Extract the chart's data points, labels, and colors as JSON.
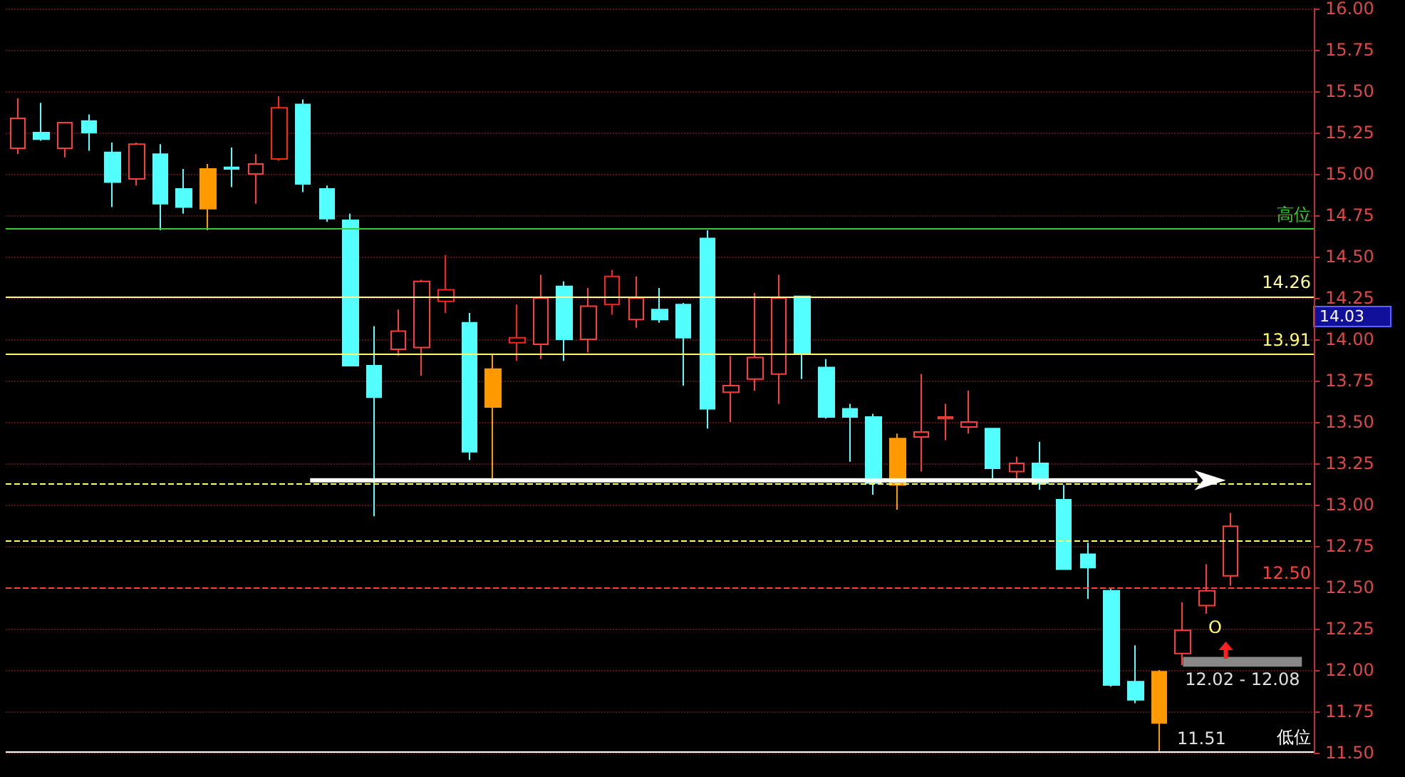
{
  "chart_data": {
    "type": "candlestick",
    "categories": [
      null,
      null,
      null,
      null,
      null,
      null,
      null,
      null,
      null,
      null,
      null,
      null,
      null,
      null,
      null,
      null,
      null,
      null,
      null,
      null,
      null,
      null,
      null,
      null,
      null,
      null,
      null,
      null,
      null,
      null,
      null,
      null,
      null,
      null,
      null,
      null,
      null,
      null,
      null,
      null,
      null,
      null,
      null,
      null,
      null,
      null,
      null,
      null,
      null,
      null,
      null,
      null,
      null,
      null,
      null
    ],
    "ohlc": [
      [
        15.155,
        15.457,
        15.12,
        15.336
      ],
      [
        15.25,
        15.43,
        15.2,
        15.21
      ],
      [
        15.155,
        15.31,
        15.1,
        15.31
      ],
      [
        15.32,
        15.36,
        15.14,
        15.25
      ],
      [
        15.13,
        15.19,
        14.8,
        14.95
      ],
      [
        14.97,
        15.19,
        14.93,
        15.18
      ],
      [
        15.12,
        15.18,
        14.66,
        14.82
      ],
      [
        14.91,
        15.03,
        14.76,
        14.8
      ],
      [
        15.03,
        15.06,
        14.66,
        14.79
      ],
      [
        15.04,
        15.16,
        14.92,
        15.03
      ],
      [
        15.0,
        15.12,
        14.82,
        15.06
      ],
      [
        15.09,
        15.47,
        15.08,
        15.4
      ],
      [
        15.42,
        15.45,
        14.89,
        14.94
      ],
      [
        14.91,
        14.93,
        14.71,
        14.73
      ],
      [
        14.72,
        14.76,
        13.84,
        13.84
      ],
      [
        13.84,
        14.08,
        12.93,
        13.65
      ],
      [
        13.94,
        14.18,
        13.9,
        14.05
      ],
      [
        13.95,
        14.36,
        13.78,
        14.35
      ],
      [
        14.23,
        14.51,
        14.16,
        14.3
      ],
      [
        14.1,
        14.16,
        13.27,
        13.32
      ],
      [
        13.82,
        13.91,
        13.14,
        13.59
      ],
      [
        13.98,
        14.21,
        13.87,
        14.01
      ],
      [
        13.97,
        14.39,
        13.88,
        14.25
      ],
      [
        14.32,
        14.35,
        13.87,
        14.0
      ],
      [
        14.0,
        14.31,
        13.92,
        14.2
      ],
      [
        14.21,
        14.42,
        14.15,
        14.38
      ],
      [
        14.12,
        14.38,
        14.07,
        14.25
      ],
      [
        14.18,
        14.31,
        14.1,
        14.12
      ],
      [
        14.21,
        14.22,
        13.72,
        14.01
      ],
      [
        14.61,
        14.66,
        13.46,
        13.58
      ],
      [
        13.68,
        13.9,
        13.5,
        13.72
      ],
      [
        13.76,
        14.28,
        13.69,
        13.89
      ],
      [
        13.79,
        14.39,
        13.61,
        14.25
      ],
      [
        14.26,
        14.26,
        13.76,
        13.91
      ],
      [
        13.83,
        13.88,
        13.52,
        13.53
      ],
      [
        13.58,
        13.61,
        13.26,
        13.53
      ],
      [
        13.53,
        13.55,
        13.06,
        13.13
      ],
      [
        13.4,
        13.43,
        12.97,
        13.12
      ],
      [
        13.41,
        13.79,
        13.2,
        13.44
      ],
      [
        13.52,
        13.61,
        13.39,
        13.53
      ],
      [
        13.47,
        13.69,
        13.43,
        13.5
      ],
      [
        13.46,
        13.46,
        13.15,
        13.22
      ],
      [
        13.2,
        13.29,
        13.16,
        13.25
      ],
      [
        13.25,
        13.38,
        13.09,
        13.13
      ],
      [
        13.03,
        13.12,
        12.61,
        12.61
      ],
      [
        12.7,
        12.77,
        12.43,
        12.62
      ],
      [
        12.48,
        12.49,
        11.9,
        11.91
      ],
      [
        11.93,
        12.15,
        11.8,
        11.82
      ],
      [
        11.99,
        12.0,
        11.51,
        11.68
      ],
      [
        12.1,
        12.41,
        12.03,
        12.24
      ],
      [
        12.39,
        12.64,
        12.34,
        12.48
      ],
      [
        12.57,
        12.95,
        12.51,
        12.87
      ],
      null,
      null,
      null
    ],
    "colors": [
      "#ff3c3c",
      "#54ffff",
      "#ff3c3c",
      "#54ffff",
      "#54ffff",
      "#ff3c3c",
      "#54ffff",
      "#54ffff",
      "#ff9900",
      "#54ffff",
      "#ff3c3c",
      "#ff2a00",
      "#54ffff",
      "#54ffff",
      "#54ffff",
      "#54ffff",
      "#ff3c3c",
      "#ff3c3c",
      "#ff2020",
      "#54ffff",
      "#ff9900",
      "#ff2020",
      "#ff3c3c",
      "#54ffff",
      "#ff3c3c",
      "#ff2020",
      "#ff3c3c",
      "#54ffff",
      "#54ffff",
      "#54ffff",
      "#ff3c3c",
      "#ff3c3c",
      "#ff3c3c",
      "#54ffff",
      "#54ffff",
      "#54ffff",
      "#54ffff",
      "#ff9900",
      "#ff3c3c",
      "#ff3c3c",
      "#ff3c3c",
      "#54ffff",
      "#ff3c3c",
      "#54ffff",
      "#54ffff",
      "#54ffff",
      "#54ffff",
      "#54ffff",
      "#ff9900",
      "#ff3c3c",
      "#ff3c3c",
      "#ff3c3c",
      null,
      null,
      null
    ],
    "ylim": [
      11.5,
      16
    ],
    "yticks": [
      {
        "value": 11.5,
        "label": "11.50"
      },
      {
        "value": 11.75,
        "label": "11.75"
      },
      {
        "value": 12,
        "label": "12.00"
      },
      {
        "value": 12.25,
        "label": "12.25"
      },
      {
        "value": 12.5,
        "label": "12.50"
      },
      {
        "value": 12.75,
        "label": "12.75"
      },
      {
        "value": 13,
        "label": "13.00"
      },
      {
        "value": 13.25,
        "label": "13.25"
      },
      {
        "value": 13.5,
        "label": "13.50"
      },
      {
        "value": 13.75,
        "label": "13.75"
      },
      {
        "value": 14,
        "label": "14.00"
      },
      {
        "value": 14.25,
        "label": "14.25"
      },
      {
        "value": 14.5,
        "label": "14.50"
      },
      {
        "value": 14.75,
        "label": "14.75"
      },
      {
        "value": 15,
        "label": "15.00"
      },
      {
        "value": 15.25,
        "label": "15.25"
      },
      {
        "value": 15.5,
        "label": "15.50"
      },
      {
        "value": 15.75,
        "label": "15.75"
      },
      {
        "value": 16,
        "label": "16.00"
      }
    ],
    "grid": "y",
    "tick_labels": "y",
    "ref_lines": [
      {
        "axis": "y",
        "value": 14.67,
        "label": "高位",
        "color": "#33cc33",
        "line_style": "solid"
      },
      {
        "axis": "y",
        "value": 14.26,
        "label": "14.26",
        "color": "#ffff99",
        "line_style": "solid"
      },
      {
        "axis": "y",
        "value": 13.91,
        "label": "13.91",
        "color": "#ffff66",
        "line_style": "solid"
      },
      {
        "axis": "y",
        "value": 13.13,
        "color": "#ffff66",
        "line_style": "dashed"
      },
      {
        "axis": "y",
        "value": 12.78,
        "color": "#ffff66",
        "line_style": "dashed"
      },
      {
        "axis": "y",
        "value": 12.5,
        "label": "12.50",
        "color": "#ff4040",
        "line_style": "dashed"
      },
      {
        "axis": "y",
        "value": 11.51,
        "label": "低位",
        "color": "#ffffff",
        "line_style": "solid"
      }
    ],
    "bands": [
      {
        "axis": "y",
        "from": 12.02,
        "to": 12.08,
        "label": "12.02 - 12.08",
        "color": "#a0a0a0"
      }
    ],
    "annotations": [
      "14.03",
      {
        "text": "11.51",
        "y": 11.51
      },
      "O"
    ]
  }
}
